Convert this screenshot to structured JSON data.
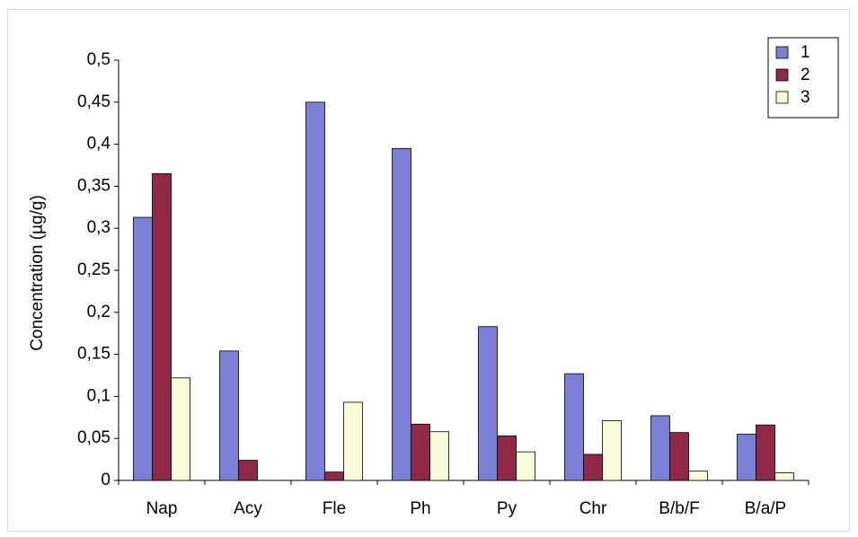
{
  "chart_data": {
    "type": "bar",
    "title": "",
    "xlabel": "",
    "ylabel": "Concentration (µg/g)",
    "categories": [
      "Nap",
      "Acy",
      "Fle",
      "Ph",
      "Py",
      "Chr",
      "B/b/F",
      "B/a/P"
    ],
    "series": [
      {
        "name": "1",
        "color": "#7b7fd6",
        "values": [
          0.313,
          0.154,
          0.45,
          0.395,
          0.183,
          0.127,
          0.077,
          0.055
        ]
      },
      {
        "name": "2",
        "color": "#8e2a45",
        "values": [
          0.365,
          0.024,
          0.01,
          0.067,
          0.053,
          0.031,
          0.057,
          0.066
        ]
      },
      {
        "name": "3",
        "color": "#fafbd8",
        "values": [
          0.122,
          0.0,
          0.093,
          0.058,
          0.034,
          0.071,
          0.011,
          0.009
        ]
      }
    ],
    "ylim": [
      0,
      0.5
    ],
    "yticks": [
      0,
      0.05,
      0.1,
      0.15,
      0.2,
      0.25,
      0.3,
      0.35,
      0.4,
      0.45,
      0.5
    ],
    "ytick_labels": [
      "0",
      "0,05",
      "0,1",
      "0,15",
      "0,2",
      "0,25",
      "0,3",
      "0,35",
      "0,4",
      "0,45",
      "0,5"
    ],
    "grid": false,
    "legend": "top-right"
  }
}
